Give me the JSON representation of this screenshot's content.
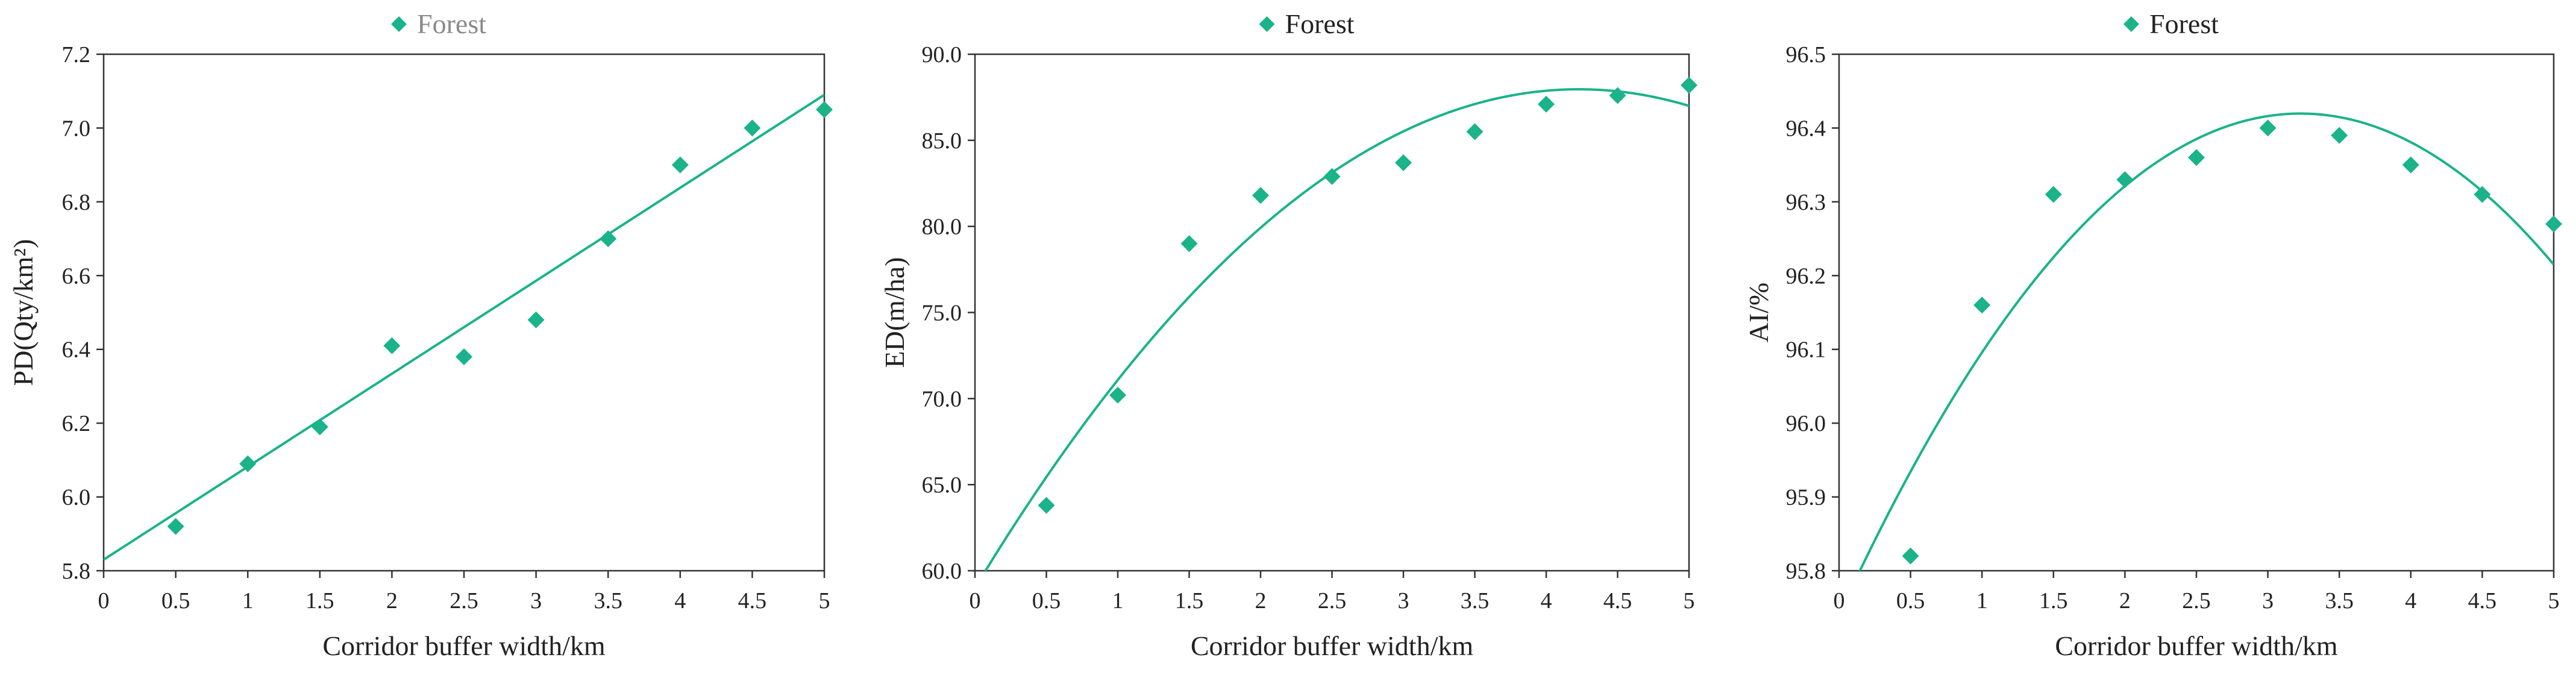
{
  "chart_data": [
    {
      "type": "scatter",
      "title": "",
      "xlabel": "Corridor buffer width/km",
      "ylabel": "PD(Qty/km²)",
      "xlim": [
        0,
        5
      ],
      "ylim": [
        5.8,
        7.2
      ],
      "x_ticks": [
        0,
        0.5,
        1,
        1.5,
        2,
        2.5,
        3,
        3.5,
        4,
        4.5,
        5
      ],
      "x_tick_labels": [
        "0",
        "0.5",
        "1",
        "1.5",
        "2",
        "2.5",
        "3",
        "3.5",
        "4",
        "4.5",
        "5"
      ],
      "y_ticks": [
        5.8,
        6.0,
        6.2,
        6.4,
        6.6,
        6.8,
        7.0,
        7.2
      ],
      "y_tick_labels": [
        "5.8",
        "6.0",
        "6.2",
        "6.4",
        "6.6",
        "6.8",
        "7.0",
        "7.2"
      ],
      "grid": false,
      "legend_position": "top-center",
      "legend_color": "#8a8a8a",
      "series": [
        {
          "name": "Forest",
          "color": "#1ab38a",
          "marker": "diamond",
          "x": [
            0.5,
            1,
            1.5,
            2,
            2.5,
            3,
            3.5,
            4,
            4.5,
            5
          ],
          "y": [
            5.92,
            6.09,
            6.19,
            6.41,
            6.38,
            6.48,
            6.7,
            6.9,
            7.0,
            7.05
          ]
        }
      ],
      "trendline": {
        "type": "linear",
        "color": "#1ab38a",
        "coefficients": [
          5.83,
          0.252
        ]
      }
    },
    {
      "type": "scatter",
      "title": "",
      "xlabel": "Corridor buffer width/km",
      "ylabel": "ED(m/ha)",
      "xlim": [
        0,
        5
      ],
      "ylim": [
        60,
        90
      ],
      "x_ticks": [
        0,
        0.5,
        1,
        1.5,
        2,
        2.5,
        3,
        3.5,
        4,
        4.5,
        5
      ],
      "x_tick_labels": [
        "0",
        "0.5",
        "1",
        "1.5",
        "2",
        "2.5",
        "3",
        "3.5",
        "4",
        "4.5",
        "5"
      ],
      "y_ticks": [
        60,
        65,
        70,
        75,
        80,
        85,
        90
      ],
      "y_tick_labels": [
        "60.0",
        "65.0",
        "70.0",
        "75.0",
        "80.0",
        "85.0",
        "90.0"
      ],
      "grid": false,
      "legend_position": "top-center",
      "legend_color": "#222222",
      "series": [
        {
          "name": "Forest",
          "color": "#1ab38a",
          "marker": "diamond",
          "x": [
            0.5,
            1,
            1.5,
            2,
            2.5,
            3,
            3.5,
            4,
            4.5,
            5
          ],
          "y": [
            63.8,
            70.2,
            79.0,
            81.8,
            82.9,
            83.7,
            85.5,
            87.1,
            87.6,
            88.2
          ]
        }
      ],
      "trendline": {
        "type": "polynomial",
        "color": "#1ab38a",
        "coefficients": [
          59.0,
          13.7,
          -1.62
        ]
      }
    },
    {
      "type": "scatter",
      "title": "",
      "xlabel": "Corridor buffer width/km",
      "ylabel": "AI/%",
      "xlim": [
        0,
        5
      ],
      "ylim": [
        95.8,
        96.5
      ],
      "x_ticks": [
        0,
        0.5,
        1,
        1.5,
        2,
        2.5,
        3,
        3.5,
        4,
        4.5,
        5
      ],
      "x_tick_labels": [
        "0",
        "0.5",
        "1",
        "1.5",
        "2",
        "2.5",
        "3",
        "3.5",
        "4",
        "4.5",
        "5"
      ],
      "y_ticks": [
        95.8,
        95.9,
        96.0,
        96.1,
        96.2,
        96.3,
        96.4,
        96.5
      ],
      "y_tick_labels": [
        "95.8",
        "95.9",
        "96.0",
        "96.1",
        "96.2",
        "96.3",
        "96.4",
        "96.5"
      ],
      "grid": false,
      "legend_position": "top-center",
      "legend_color": "#222222",
      "series": [
        {
          "name": "Forest",
          "color": "#1ab38a",
          "marker": "diamond",
          "x": [
            0.5,
            1,
            1.5,
            2,
            2.5,
            3,
            3.5,
            4,
            4.5,
            5
          ],
          "y": [
            95.82,
            96.16,
            96.31,
            96.33,
            96.36,
            96.4,
            96.39,
            96.35,
            96.31,
            96.27
          ]
        }
      ],
      "trendline": {
        "type": "polynomial",
        "color": "#1ab38a",
        "coefficients": [
          95.74,
          0.421,
          -0.0652
        ]
      }
    }
  ]
}
